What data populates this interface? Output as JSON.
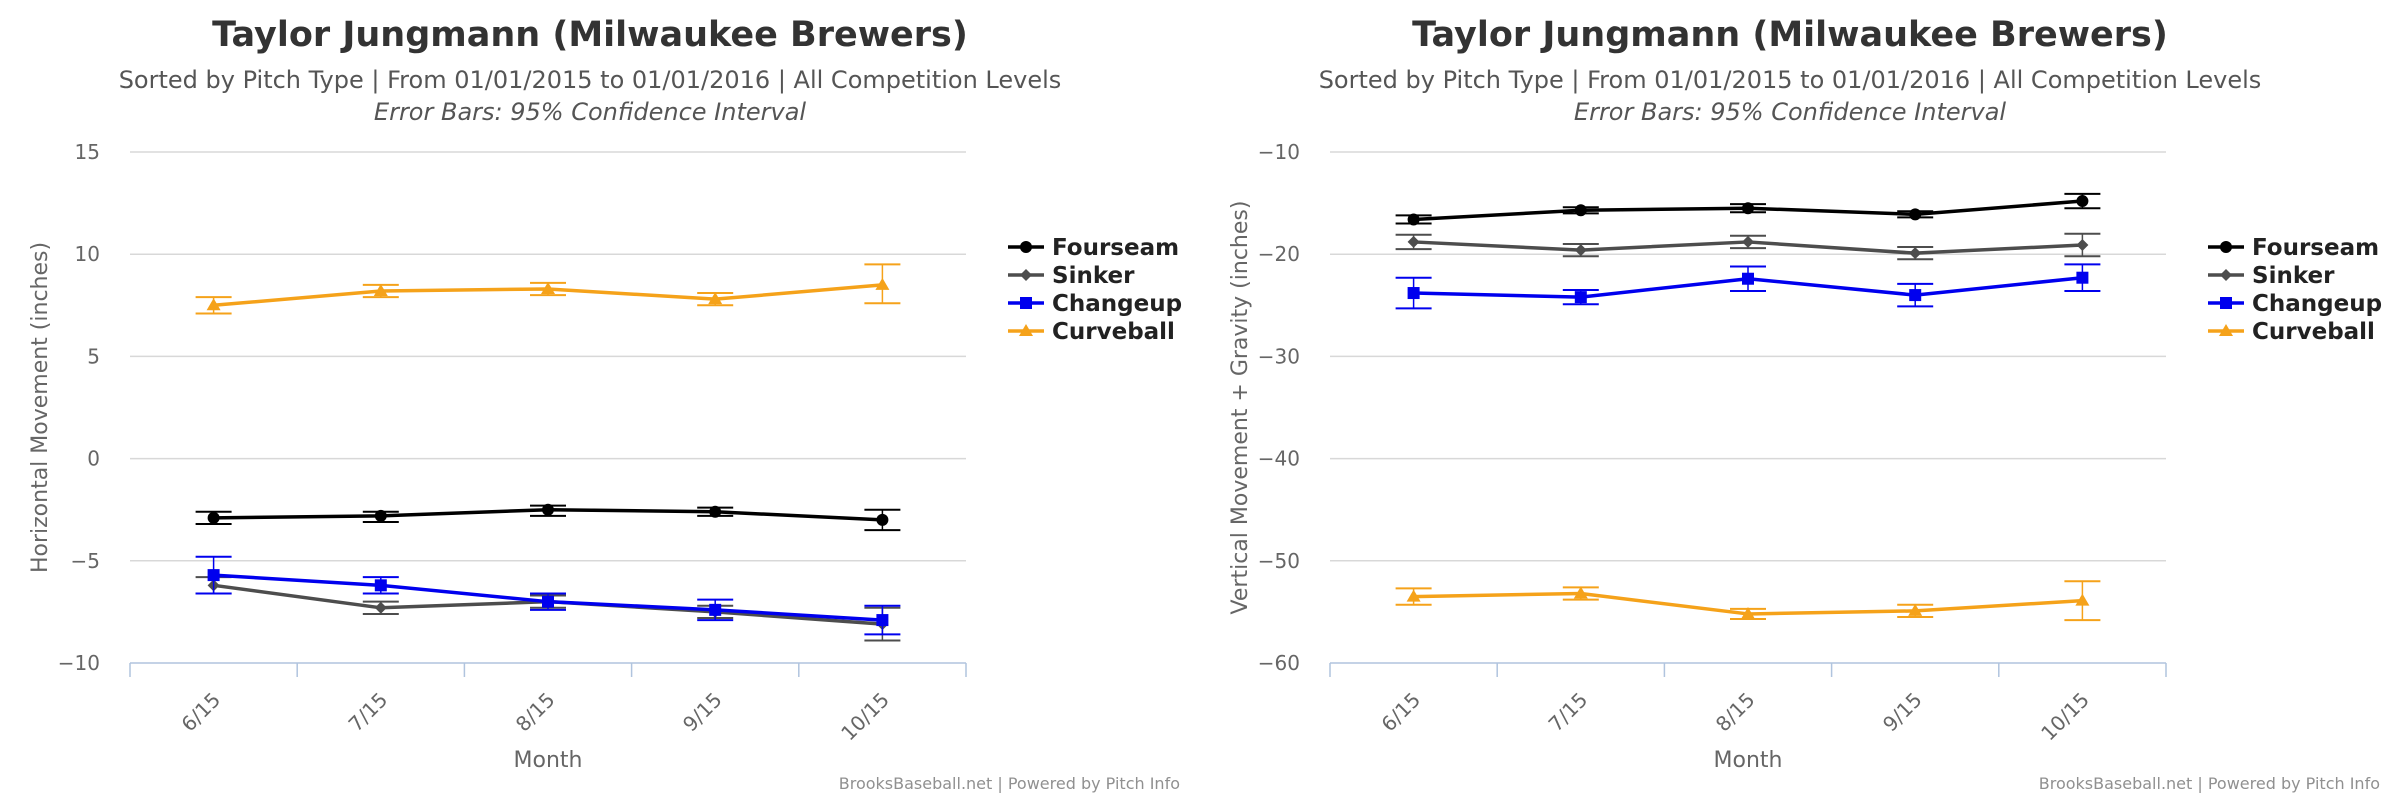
{
  "credits": "BrooksBaseball.net | Powered by Pitch Info",
  "colors": {
    "Fourseam": "#000000",
    "Sinker": "#4d4d4d",
    "Changeup": "#0000ee",
    "Curveball": "#f5a21a"
  },
  "chart_data": [
    {
      "type": "line",
      "title": "Taylor Jungmann (Milwaukee Brewers)",
      "subtitle": "Sorted by Pitch Type | From 01/01/2015 to 01/01/2016 | All Competition Levels",
      "subtitle2": "Error Bars: 95% Confidence Interval",
      "xlabel": "Month",
      "ylabel": "Horizontal Movement (inches)",
      "categories": [
        "6/15",
        "7/15",
        "8/15",
        "9/15",
        "10/15"
      ],
      "ylim": [
        -10,
        15
      ],
      "yticks": [
        15,
        10,
        5,
        0,
        -5,
        -10
      ],
      "grid": true,
      "legend": "right",
      "series": [
        {
          "name": "Fourseam",
          "marker": "circle",
          "values": [
            -2.9,
            -2.8,
            -2.5,
            -2.6,
            -3.0
          ],
          "err_low": [
            -3.2,
            -3.1,
            -2.8,
            -2.8,
            -3.5
          ],
          "err_high": [
            -2.6,
            -2.6,
            -2.3,
            -2.4,
            -2.5
          ]
        },
        {
          "name": "Sinker",
          "marker": "diamond",
          "values": [
            -6.2,
            -7.3,
            -7.0,
            -7.5,
            -8.1
          ],
          "err_low": [
            -6.6,
            -7.6,
            -7.3,
            -7.8,
            -8.9
          ],
          "err_high": [
            -5.8,
            -7.0,
            -6.7,
            -7.2,
            -7.3
          ]
        },
        {
          "name": "Changeup",
          "marker": "square",
          "values": [
            -5.7,
            -6.2,
            -7.0,
            -7.4,
            -7.9
          ],
          "err_low": [
            -6.6,
            -6.6,
            -7.4,
            -7.9,
            -8.6
          ],
          "err_high": [
            -4.8,
            -5.8,
            -6.6,
            -6.9,
            -7.2
          ]
        },
        {
          "name": "Curveball",
          "marker": "triangle",
          "values": [
            7.5,
            8.2,
            8.3,
            7.8,
            8.5
          ],
          "err_low": [
            7.1,
            7.9,
            8.0,
            7.5,
            7.6
          ],
          "err_high": [
            7.9,
            8.5,
            8.6,
            8.1,
            9.5
          ]
        }
      ]
    },
    {
      "type": "line",
      "title": "Taylor Jungmann (Milwaukee Brewers)",
      "subtitle": "Sorted by Pitch Type | From 01/01/2015 to 01/01/2016 | All Competition Levels",
      "subtitle2": "Error Bars: 95% Confidence Interval",
      "xlabel": "Month",
      "ylabel": "Vertical Movement + Gravity (inches)",
      "categories": [
        "6/15",
        "7/15",
        "8/15",
        "9/15",
        "10/15"
      ],
      "ylim": [
        -60,
        -10
      ],
      "yticks": [
        -10,
        -20,
        -30,
        -40,
        -50,
        -60
      ],
      "grid": true,
      "legend": "right",
      "series": [
        {
          "name": "Fourseam",
          "marker": "circle",
          "values": [
            -16.6,
            -15.7,
            -15.5,
            -16.1,
            -14.8
          ],
          "err_low": [
            -17.0,
            -16.0,
            -15.9,
            -16.4,
            -15.5
          ],
          "err_high": [
            -16.2,
            -15.4,
            -15.1,
            -15.8,
            -14.1
          ]
        },
        {
          "name": "Sinker",
          "marker": "diamond",
          "values": [
            -18.8,
            -19.6,
            -18.8,
            -19.9,
            -19.1
          ],
          "err_low": [
            -19.5,
            -20.2,
            -19.4,
            -20.5,
            -20.2
          ],
          "err_high": [
            -18.1,
            -19.0,
            -18.2,
            -19.3,
            -18.0
          ]
        },
        {
          "name": "Changeup",
          "marker": "square",
          "values": [
            -23.8,
            -24.2,
            -22.4,
            -24.0,
            -22.3
          ],
          "err_low": [
            -25.3,
            -24.9,
            -23.6,
            -25.1,
            -23.6
          ],
          "err_high": [
            -22.3,
            -23.5,
            -21.2,
            -22.9,
            -21.0
          ]
        },
        {
          "name": "Curveball",
          "marker": "triangle",
          "values": [
            -53.5,
            -53.2,
            -55.2,
            -54.9,
            -53.9
          ],
          "err_low": [
            -54.3,
            -53.8,
            -55.7,
            -55.5,
            -55.8
          ],
          "err_high": [
            -52.7,
            -52.6,
            -54.7,
            -54.3,
            -52.0
          ]
        }
      ]
    }
  ]
}
